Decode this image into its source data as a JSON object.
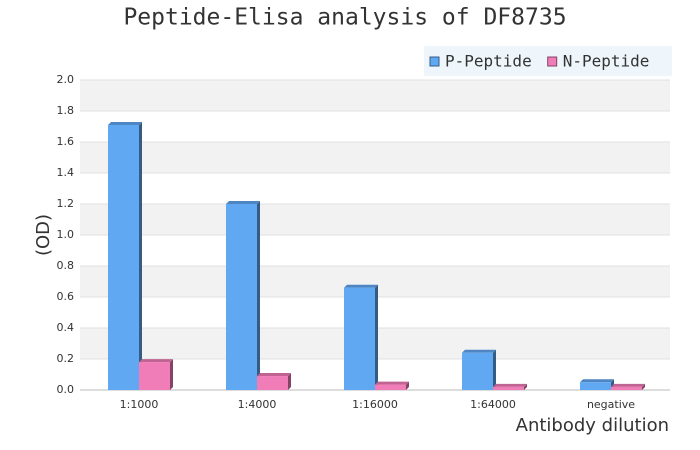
{
  "chart_data": {
    "type": "bar",
    "title": "Peptide-Elisa analysis of DF8735",
    "x_label": "Antibody dilution",
    "y_label": "(OD)",
    "categories": [
      "1:1000",
      "1:4000",
      "1:16000",
      "1:64000",
      "negative"
    ],
    "series": [
      {
        "name": "P-Peptide",
        "color": "#60a8f2",
        "values": [
          1.71,
          1.2,
          0.66,
          0.24,
          0.05
        ]
      },
      {
        "name": "N-Peptide",
        "color": "#f07cb8",
        "values": [
          0.18,
          0.09,
          0.035,
          0.02,
          0.02
        ]
      }
    ],
    "ylim": [
      0,
      2
    ],
    "yticks": [
      {
        "value": 0,
        "label": "0.0"
      },
      0.2,
      0.4,
      0.6,
      0.8,
      {
        "value": 1,
        "label": "1.0"
      },
      1.2,
      1.4,
      1.6,
      1.8,
      {
        "value": 2,
        "label": "2.0"
      }
    ],
    "grid": true,
    "legend": "top-right"
  }
}
